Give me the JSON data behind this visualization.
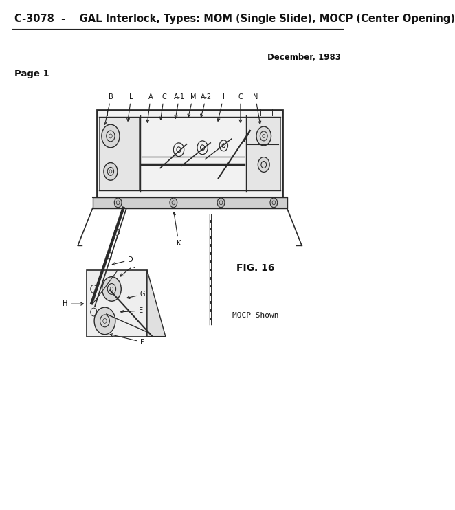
{
  "title": "C-3078  -    GAL Interlock, Types: MOM (Single Slide), MOCP (Center Opening)",
  "date_text": "December, 1983",
  "page_label": "Page 1",
  "fig_label": "FIG. 16",
  "mocp_label": "MOCP Shown",
  "bg_color": "#ffffff",
  "text_color": "#111111",
  "draw_color": "#2a2a2a",
  "title_fontsize": 10.5,
  "date_fontsize": 8.5,
  "page_fontsize": 9.5,
  "fig_fontsize": 10,
  "label_fontsize": 7,
  "top_labels": [
    "B",
    "L",
    "A",
    "C",
    "A-1",
    "M",
    "A-2",
    "I",
    "C",
    "N"
  ],
  "line_color": "#222222"
}
